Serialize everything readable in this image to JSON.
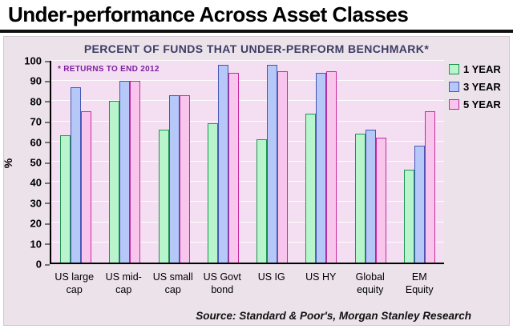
{
  "header": {
    "title": "Under-performance Across Asset Classes"
  },
  "subtitle": "PERCENT OF FUNDS THAT UNDER-PERFORM BENCHMARK*",
  "annotation": "* RETURNS TO END 2012",
  "source": "Source: Standard & Poor's, Morgan Stanley Research",
  "colors": {
    "plot_background": "#f4def2",
    "panel_background": "#ebe2ea",
    "annotation": "#7d1fa0",
    "subtitle": "#3c3c64"
  },
  "chart_data": {
    "type": "bar",
    "title": "Under-performance Across Asset Classes",
    "subtitle": "PERCENT OF FUNDS THAT UNDER-PERFORM BENCHMARK*",
    "xlabel": "",
    "ylabel": "%",
    "ylim": [
      0,
      100
    ],
    "yticks": [
      0,
      10,
      20,
      30,
      40,
      50,
      60,
      70,
      80,
      90,
      100
    ],
    "grid": true,
    "legend_position": "top-right",
    "categories": [
      "US large\ncap",
      "US mid-\ncap",
      "US small\ncap",
      "US Govt\nbond",
      "US IG",
      "US HY",
      "Global\nequity",
      "EM\nEquity"
    ],
    "series": [
      {
        "name": "1 YEAR",
        "fill": "#b8f5cd",
        "border": "#1f9150",
        "values": [
          63,
          80,
          66,
          69,
          61,
          74,
          64,
          46
        ]
      },
      {
        "name": "3 YEAR",
        "fill": "#b6c8f8",
        "border": "#4455b5",
        "values": [
          87,
          90,
          83,
          98,
          98,
          94,
          66,
          58
        ]
      },
      {
        "name": "5 YEAR",
        "fill": "#f8c6ec",
        "border": "#c8289c",
        "values": [
          75,
          90,
          83,
          94,
          95,
          95,
          62,
          75
        ]
      }
    ]
  }
}
